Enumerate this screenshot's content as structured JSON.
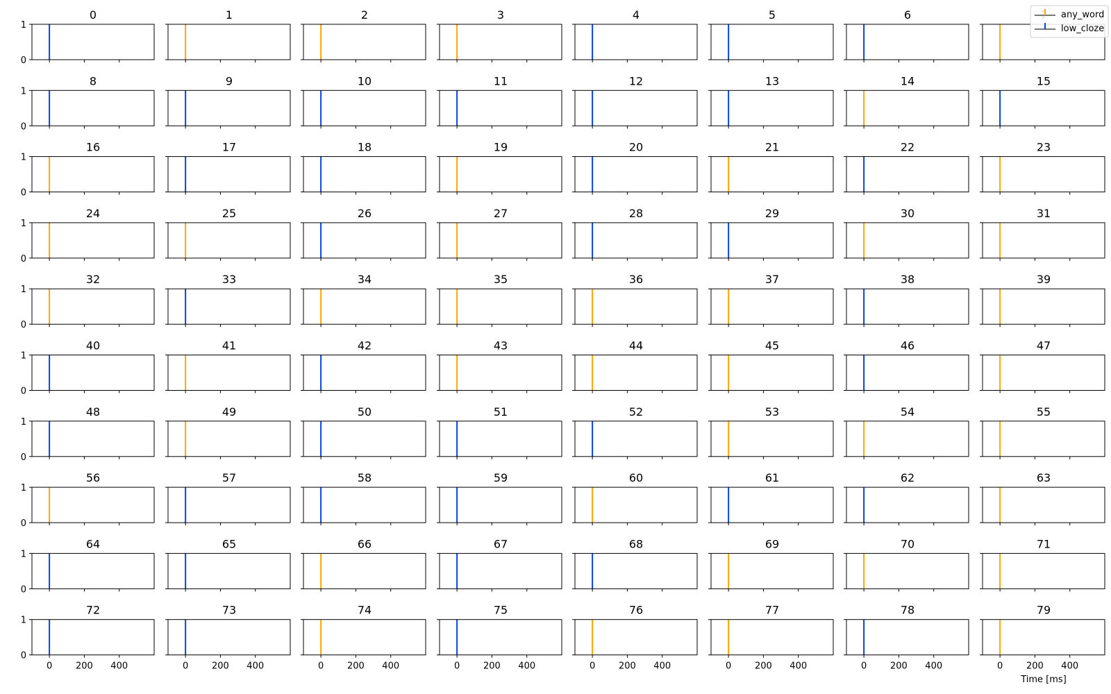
{
  "chart_data": {
    "type": "grid_of_event_plots",
    "rows": 10,
    "cols": 8,
    "xlim": [
      -100,
      600
    ],
    "ylim": [
      0,
      1
    ],
    "xticks": [
      0,
      200,
      400
    ],
    "yticks": [
      0,
      1
    ],
    "xlabel": "Time [ms]",
    "legend": {
      "placement": "top-right",
      "entries": [
        {
          "label": "any_word",
          "color": "#ffa500"
        },
        {
          "label": "low_cloze",
          "color": "#0343df"
        }
      ]
    },
    "event_time": 0,
    "panels": [
      {
        "title": "0",
        "series": "low_cloze"
      },
      {
        "title": "1",
        "series": "any_word"
      },
      {
        "title": "2",
        "series": "any_word"
      },
      {
        "title": "3",
        "series": "any_word"
      },
      {
        "title": "4",
        "series": "low_cloze"
      },
      {
        "title": "5",
        "series": "low_cloze"
      },
      {
        "title": "6",
        "series": "low_cloze"
      },
      {
        "title": "7",
        "series": "any_word"
      },
      {
        "title": "8",
        "series": "low_cloze"
      },
      {
        "title": "9",
        "series": "low_cloze"
      },
      {
        "title": "10",
        "series": "low_cloze"
      },
      {
        "title": "11",
        "series": "low_cloze"
      },
      {
        "title": "12",
        "series": "low_cloze"
      },
      {
        "title": "13",
        "series": "low_cloze"
      },
      {
        "title": "14",
        "series": "any_word"
      },
      {
        "title": "15",
        "series": "low_cloze"
      },
      {
        "title": "16",
        "series": "any_word"
      },
      {
        "title": "17",
        "series": "low_cloze"
      },
      {
        "title": "18",
        "series": "low_cloze"
      },
      {
        "title": "19",
        "series": "any_word"
      },
      {
        "title": "20",
        "series": "low_cloze"
      },
      {
        "title": "21",
        "series": "any_word"
      },
      {
        "title": "22",
        "series": "low_cloze"
      },
      {
        "title": "23",
        "series": "any_word"
      },
      {
        "title": "24",
        "series": "any_word"
      },
      {
        "title": "25",
        "series": "any_word"
      },
      {
        "title": "26",
        "series": "low_cloze"
      },
      {
        "title": "27",
        "series": "any_word"
      },
      {
        "title": "28",
        "series": "low_cloze"
      },
      {
        "title": "29",
        "series": "low_cloze"
      },
      {
        "title": "30",
        "series": "any_word"
      },
      {
        "title": "31",
        "series": "any_word"
      },
      {
        "title": "32",
        "series": "any_word"
      },
      {
        "title": "33",
        "series": "low_cloze"
      },
      {
        "title": "34",
        "series": "any_word"
      },
      {
        "title": "35",
        "series": "any_word"
      },
      {
        "title": "36",
        "series": "any_word"
      },
      {
        "title": "37",
        "series": "any_word"
      },
      {
        "title": "38",
        "series": "low_cloze"
      },
      {
        "title": "39",
        "series": "any_word"
      },
      {
        "title": "40",
        "series": "low_cloze"
      },
      {
        "title": "41",
        "series": "any_word"
      },
      {
        "title": "42",
        "series": "low_cloze"
      },
      {
        "title": "43",
        "series": "any_word"
      },
      {
        "title": "44",
        "series": "any_word"
      },
      {
        "title": "45",
        "series": "any_word"
      },
      {
        "title": "46",
        "series": "low_cloze"
      },
      {
        "title": "47",
        "series": "any_word"
      },
      {
        "title": "48",
        "series": "low_cloze"
      },
      {
        "title": "49",
        "series": "any_word"
      },
      {
        "title": "50",
        "series": "low_cloze"
      },
      {
        "title": "51",
        "series": "low_cloze"
      },
      {
        "title": "52",
        "series": "low_cloze"
      },
      {
        "title": "53",
        "series": "any_word"
      },
      {
        "title": "54",
        "series": "any_word"
      },
      {
        "title": "55",
        "series": "any_word"
      },
      {
        "title": "56",
        "series": "any_word"
      },
      {
        "title": "57",
        "series": "low_cloze"
      },
      {
        "title": "58",
        "series": "low_cloze"
      },
      {
        "title": "59",
        "series": "low_cloze"
      },
      {
        "title": "60",
        "series": "any_word"
      },
      {
        "title": "61",
        "series": "low_cloze"
      },
      {
        "title": "62",
        "series": "low_cloze"
      },
      {
        "title": "63",
        "series": "any_word"
      },
      {
        "title": "64",
        "series": "low_cloze"
      },
      {
        "title": "65",
        "series": "low_cloze"
      },
      {
        "title": "66",
        "series": "any_word"
      },
      {
        "title": "67",
        "series": "low_cloze"
      },
      {
        "title": "68",
        "series": "low_cloze"
      },
      {
        "title": "69",
        "series": "any_word"
      },
      {
        "title": "70",
        "series": "any_word"
      },
      {
        "title": "71",
        "series": "any_word"
      },
      {
        "title": "72",
        "series": "low_cloze"
      },
      {
        "title": "73",
        "series": "low_cloze"
      },
      {
        "title": "74",
        "series": "any_word"
      },
      {
        "title": "75",
        "series": "low_cloze"
      },
      {
        "title": "76",
        "series": "any_word"
      },
      {
        "title": "77",
        "series": "any_word"
      },
      {
        "title": "78",
        "series": "low_cloze"
      },
      {
        "title": "79",
        "series": "any_word"
      }
    ]
  }
}
